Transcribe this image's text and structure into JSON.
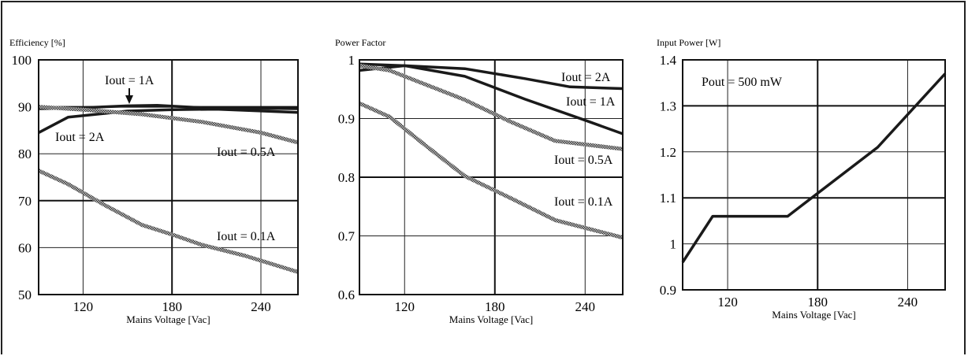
{
  "chart_data": [
    {
      "type": "line",
      "title": "Efficiency [%]",
      "xlabel": "Mains Voltage [Vac]",
      "xlim": [
        90,
        265
      ],
      "ylim": [
        50,
        100
      ],
      "xticks": [
        120,
        180,
        240
      ],
      "yticks": [
        50,
        60,
        70,
        80,
        90,
        100
      ],
      "grid": true,
      "series": [
        {
          "name": "Iout = 1A",
          "style": "solid",
          "x": [
            90,
            120,
            150,
            170,
            200,
            265
          ],
          "y": [
            89.6,
            89.8,
            90.2,
            90.3,
            89.8,
            89.6
          ]
        },
        {
          "name": "Iout = 2A",
          "style": "solid",
          "x": [
            90,
            110,
            150,
            180,
            210,
            265
          ],
          "y": [
            84.5,
            87.8,
            89.1,
            89.4,
            89.5,
            88.8
          ]
        },
        {
          "name": "Iout = 0.5A",
          "style": "hatched",
          "x": [
            90,
            120,
            160,
            200,
            240,
            265
          ],
          "y": [
            90,
            89.4,
            88.4,
            86.8,
            84.5,
            82.4
          ]
        },
        {
          "name": "Iout = 0.1A",
          "style": "hatched",
          "x": [
            90,
            110,
            135,
            160,
            180,
            200,
            230,
            265
          ],
          "y": [
            76.4,
            73.5,
            69,
            64.8,
            62.8,
            60.6,
            58.2,
            54.8
          ]
        }
      ],
      "annotations": [
        "Iout = 1A",
        "Iout = 2A",
        "Iout = 0.5A",
        "Iout = 0.1A"
      ]
    },
    {
      "type": "line",
      "title": "Power Factor",
      "xlabel": "Mains Voltage [Vac]",
      "xlim": [
        90,
        265
      ],
      "ylim": [
        0.6,
        1.0
      ],
      "xticks": [
        120,
        180,
        240
      ],
      "yticks": [
        0.6,
        0.7,
        0.8,
        0.9,
        1
      ],
      "grid": true,
      "series": [
        {
          "name": "Iout = 2A",
          "style": "solid",
          "x": [
            90,
            120,
            160,
            200,
            230,
            265
          ],
          "y": [
            0.993,
            0.99,
            0.985,
            0.968,
            0.954,
            0.951
          ]
        },
        {
          "name": "Iout = 1A",
          "style": "solid",
          "x": [
            90,
            120,
            160,
            200,
            240,
            265
          ],
          "y": [
            0.982,
            0.99,
            0.972,
            0.933,
            0.897,
            0.874
          ]
        },
        {
          "name": "Iout = 0.5A",
          "style": "hatched",
          "x": [
            90,
            110,
            130,
            160,
            190,
            220,
            265
          ],
          "y": [
            0.99,
            0.982,
            0.962,
            0.932,
            0.895,
            0.862,
            0.848
          ]
        },
        {
          "name": "Iout = 0.1A",
          "style": "hatched",
          "x": [
            90,
            110,
            135,
            160,
            190,
            220,
            265
          ],
          "y": [
            0.926,
            0.903,
            0.852,
            0.802,
            0.765,
            0.727,
            0.697
          ]
        }
      ],
      "annotations": [
        "Iout = 2A",
        "Iout = 1A",
        "Iout = 0.5A",
        "Iout = 0.1A"
      ]
    },
    {
      "type": "line",
      "title": "Input Power [W]",
      "xlabel": "Mains Voltage [Vac]",
      "xlim": [
        90,
        265
      ],
      "ylim": [
        0.9,
        1.4
      ],
      "xticks": [
        120,
        180,
        240
      ],
      "yticks": [
        0.9,
        1,
        1.1,
        1.2,
        1.3,
        1.4
      ],
      "grid": true,
      "series": [
        {
          "name": "Pout = 500 mW",
          "style": "solid",
          "x": [
            90,
            110,
            160,
            220,
            265
          ],
          "y": [
            0.96,
            1.06,
            1.06,
            1.21,
            1.37
          ]
        }
      ],
      "annotations": [
        "Pout = 500 mW"
      ]
    }
  ]
}
